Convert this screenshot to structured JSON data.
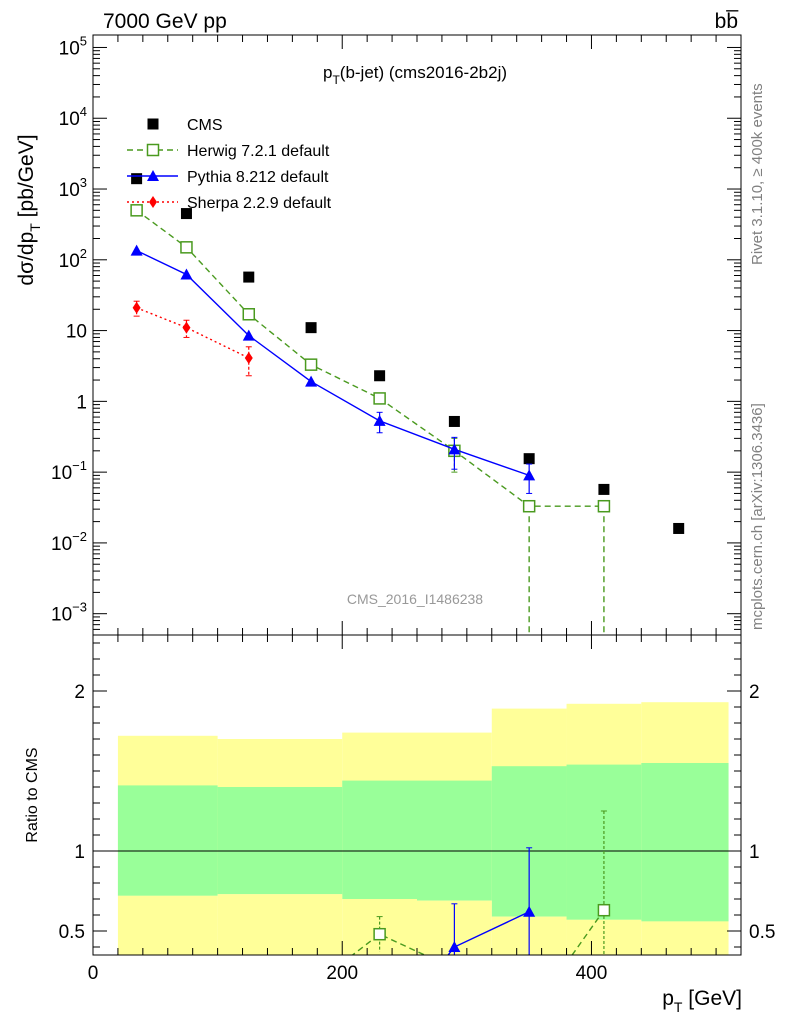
{
  "header": {
    "energy_label": "7000 GeV pp",
    "process_label": "bb̅"
  },
  "side_labels": {
    "rivet": "Rivet 3.1.10, ≥ 400k events",
    "mcplots": "mcplots.cern.ch [arXiv:1306.3436]"
  },
  "chart_data": [
    {
      "type": "scatter",
      "title": "p_T(b-jet) (cms2016-2b2j)",
      "title_main": "p",
      "title_sub": "T",
      "title_rest": "(b-jet) (cms2016-2b2j)",
      "watermark": "CMS_2016_I1486238",
      "ylabel": "dσ/dp_T [pb/GeV]",
      "ylabel_main": "dσ/dp",
      "ylabel_sub": "T",
      "ylabel_rest": " [pb/GeV]",
      "xlim": [
        0,
        520
      ],
      "ylim": [
        0.0005,
        150000
      ],
      "yscale": "log",
      "legend_position": "top-left",
      "y_ticks": [
        {
          "value": 100000,
          "base": "10",
          "exp": "5"
        },
        {
          "value": 10000,
          "base": "10",
          "exp": "4"
        },
        {
          "value": 1000,
          "base": "10",
          "exp": "3"
        },
        {
          "value": 100,
          "base": "10",
          "exp": "2"
        },
        {
          "value": 10,
          "base": "10",
          "exp": ""
        },
        {
          "value": 1,
          "base": "1",
          "exp": ""
        },
        {
          "value": 0.1,
          "base": "10",
          "exp": "−1"
        },
        {
          "value": 0.01,
          "base": "10",
          "exp": "−2"
        },
        {
          "value": 0.001,
          "base": "10",
          "exp": "−3"
        }
      ],
      "series": [
        {
          "name": "CMS",
          "color": "#000000",
          "marker": "square-filled",
          "line": "none",
          "x": [
            35,
            75,
            125,
            175,
            230,
            290,
            350,
            410,
            470
          ],
          "y": [
            1400,
            450,
            57,
            11,
            2.3,
            0.52,
            0.155,
            0.057,
            0.016
          ]
        },
        {
          "name": "Herwig 7.2.1 default",
          "color": "#4a9a1f",
          "marker": "square-open",
          "line": "dashed",
          "x": [
            35,
            75,
            125,
            175,
            230,
            290,
            350,
            410
          ],
          "y": [
            500,
            150,
            17,
            3.3,
            1.1,
            0.2,
            0.033,
            0.033
          ],
          "yerr": [
            0,
            0,
            0,
            0,
            0,
            0.1,
            0,
            0
          ]
        },
        {
          "name": "Pythia 8.212 default",
          "color": "#0000ff",
          "marker": "triangle-filled",
          "line": "solid",
          "x": [
            35,
            75,
            125,
            175,
            230,
            290,
            350
          ],
          "y": [
            135,
            62,
            8.5,
            1.9,
            0.53,
            0.21,
            0.09
          ],
          "yerr": [
            0,
            0,
            0,
            0,
            0.17,
            0.1,
            0.04
          ]
        },
        {
          "name": "Sherpa 2.2.9 default",
          "color": "#ff0000",
          "marker": "diamond-filled",
          "line": "dotted",
          "x": [
            35,
            75,
            125
          ],
          "y": [
            21,
            11,
            4.1
          ],
          "yerr": [
            5,
            3,
            1.8
          ]
        }
      ]
    },
    {
      "type": "scatter",
      "ylabel": "Ratio to CMS",
      "xlabel": "p_T [GeV]",
      "xlabel_main": "p",
      "xlabel_sub": "T",
      "xlabel_rest": " [GeV]",
      "xlim": [
        0,
        520
      ],
      "ylim": [
        0.35,
        2.35
      ],
      "x_ticks": [
        0,
        200,
        400
      ],
      "y_ticks": [
        0.5,
        1,
        2
      ],
      "reference_line": 1,
      "bands": [
        {
          "name": "CMS total uncertainty",
          "color": "#ffff99",
          "bins": [
            [
              20,
              100,
              0.72,
              1.72
            ],
            [
              100,
              200,
              0.73,
              1.7
            ],
            [
              200,
              260,
              0.7,
              1.74
            ],
            [
              260,
              320,
              0.69,
              1.74
            ],
            [
              320,
              380,
              0.59,
              1.89
            ],
            [
              380,
              440,
              0.57,
              1.92
            ],
            [
              440,
              510,
              0.56,
              1.93
            ]
          ]
        },
        {
          "name": "CMS statistical uncertainty",
          "color": "#99ff99",
          "bins": [
            [
              20,
              100,
              0.72,
              1.41
            ],
            [
              100,
              200,
              0.73,
              1.4
            ],
            [
              200,
              260,
              0.7,
              1.44
            ],
            [
              260,
              320,
              0.69,
              1.44
            ],
            [
              320,
              380,
              0.59,
              1.53
            ],
            [
              380,
              440,
              0.57,
              1.54
            ],
            [
              440,
              510,
              0.56,
              1.55
            ]
          ]
        }
      ],
      "series": [
        {
          "name": "Herwig 7.2.1 default",
          "color": "#4a9a1f",
          "marker": "square-open",
          "line": "dashed",
          "x": [
            200,
            230,
            280,
            380,
            410
          ],
          "y": [
            0.3,
            0.48,
            0.3,
            0.3,
            0.63
          ],
          "show_marker": [
            false,
            true,
            false,
            false,
            true
          ],
          "yerr": [
            0,
            0.11,
            0,
            0,
            0.62
          ]
        },
        {
          "name": "Pythia 8.212 default",
          "color": "#0000ff",
          "marker": "triangle-filled",
          "line": "solid",
          "x": [
            280,
            290,
            350
          ],
          "y": [
            0.3,
            0.4,
            0.62
          ],
          "show_marker": [
            false,
            true,
            true
          ],
          "yerr": [
            0,
            0.27,
            0.4
          ]
        }
      ]
    }
  ]
}
